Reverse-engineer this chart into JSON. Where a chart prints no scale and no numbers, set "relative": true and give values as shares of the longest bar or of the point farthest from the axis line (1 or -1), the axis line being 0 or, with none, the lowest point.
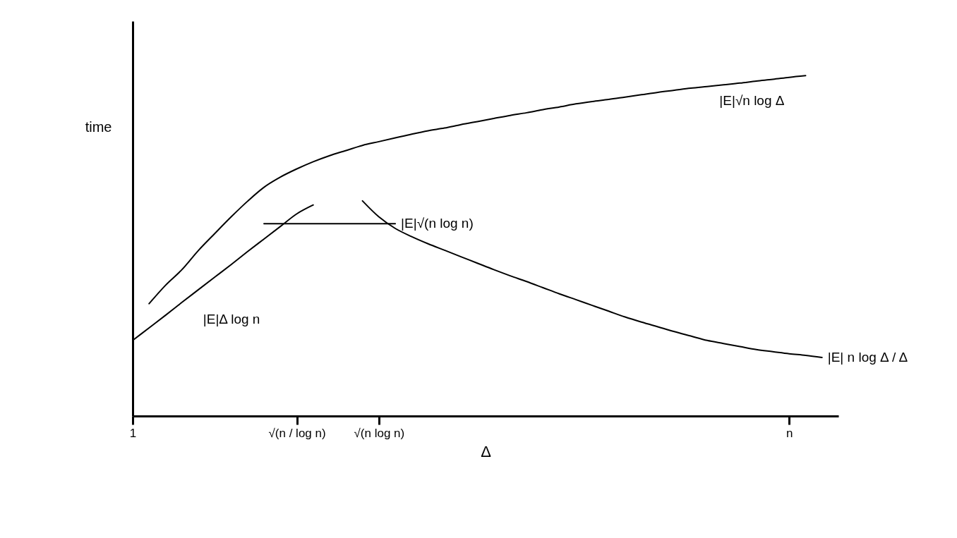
{
  "chart_data": {
    "type": "line",
    "relative": true,
    "ylabel": "time",
    "xlabel": "Δ",
    "categories": [
      "1",
      null,
      null,
      null,
      null,
      null,
      null,
      null,
      null,
      null,
      "√(n / log n)",
      null,
      null,
      null,
      null,
      "√(n log n)",
      null,
      null,
      null,
      null,
      null,
      null,
      null,
      null,
      null,
      null,
      null,
      null,
      null,
      null,
      null,
      null,
      null,
      null,
      null,
      null,
      null,
      null,
      null,
      null,
      "n",
      null,
      null,
      null
    ],
    "grid": false,
    "line_style": "solid",
    "series": [
      {
        "name": "|E|√n log Δ",
        "color": "#000000",
        "values": [
          null,
          0.33,
          0.384,
          0.43,
          0.486,
          0.536,
          0.585,
          0.631,
          0.672,
          0.702,
          0.726,
          0.747,
          0.765,
          0.78,
          0.795,
          0.806,
          0.817,
          0.828,
          0.838,
          0.846,
          0.856,
          0.865,
          0.874,
          0.883,
          0.891,
          0.9,
          0.908,
          0.917,
          0.924,
          0.93,
          0.937,
          0.944,
          0.951,
          0.957,
          0.963,
          0.968,
          0.973,
          0.978,
          0.984,
          0.989,
          0.995,
          1,
          null,
          null
        ]
      },
      {
        "name": "|E|Δ log n",
        "color": "#000000",
        "values": [
          0.222,
          0.259,
          0.296,
          0.334,
          0.371,
          0.408,
          0.445,
          0.483,
          0.52,
          0.557,
          0.594,
          0.62,
          null,
          null,
          null,
          null,
          null,
          null,
          null,
          null,
          null,
          null,
          null,
          null,
          null,
          null,
          null,
          null,
          null,
          null,
          null,
          null,
          null,
          null,
          null,
          null,
          null,
          null,
          null,
          null,
          null,
          null,
          null,
          null
        ]
      },
      {
        "name": "|E|√(n log n)",
        "color": "#000000",
        "values": [
          null,
          null,
          null,
          null,
          null,
          null,
          null,
          null,
          0.565,
          0.565,
          0.565,
          0.565,
          0.565,
          0.565,
          0.565,
          0.565,
          0.565,
          null,
          null,
          null,
          null,
          null,
          null,
          null,
          null,
          null,
          null,
          null,
          null,
          null,
          null,
          null,
          null,
          null,
          null,
          null,
          null,
          null,
          null,
          null,
          null,
          null,
          null,
          null
        ]
      },
      {
        "name": "|E| n log Δ / Δ",
        "color": "#000000",
        "values": [
          null,
          null,
          null,
          null,
          null,
          null,
          null,
          null,
          null,
          null,
          null,
          null,
          null,
          null,
          0.632,
          0.585,
          0.551,
          0.527,
          0.506,
          0.487,
          0.468,
          0.449,
          0.43,
          0.412,
          0.395,
          0.377,
          0.359,
          0.342,
          0.325,
          0.308,
          0.291,
          0.276,
          0.262,
          0.248,
          0.235,
          0.222,
          0.213,
          0.204,
          0.195,
          0.189,
          0.183,
          0.178,
          0.172,
          null
        ]
      }
    ]
  }
}
